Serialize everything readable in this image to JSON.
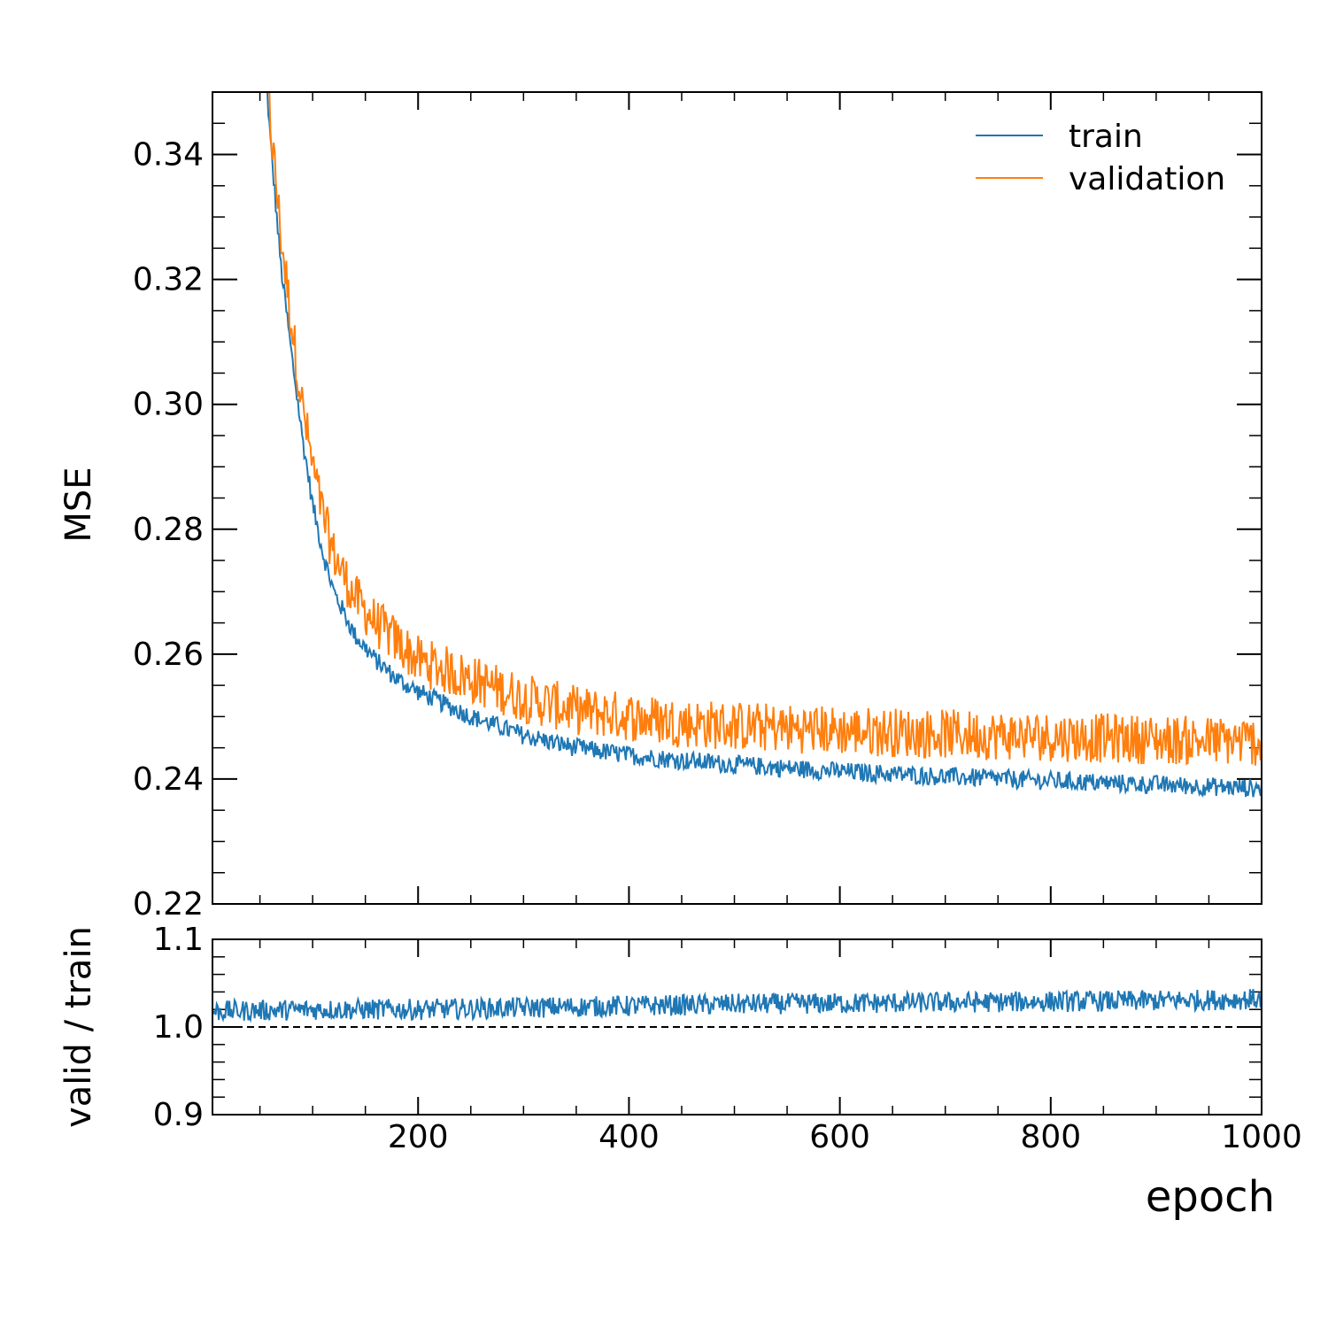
{
  "chart_data": [
    {
      "type": "line",
      "panel": "main",
      "title": "",
      "xlabel": "",
      "ylabel": "MSE",
      "xlim": [
        5,
        1000
      ],
      "ylim": [
        0.22,
        0.35
      ],
      "x_ticks": [
        200,
        400,
        600,
        800,
        1000
      ],
      "y_ticks": [
        0.22,
        0.24,
        0.26,
        0.28,
        0.3,
        0.32,
        0.34
      ],
      "y_tick_labels": [
        "0.22",
        "0.24",
        "0.26",
        "0.28",
        "0.30",
        "0.32",
        "0.34"
      ],
      "grid": false,
      "legend": {
        "position": "top-right",
        "entries": [
          "train",
          "validation"
        ]
      },
      "series": [
        {
          "name": "train",
          "color": "#1f77b4",
          "description": "approx. a + b*exp(-(x-c)/tau) with noise",
          "x": [
            55,
            60,
            70,
            80,
            90,
            100,
            110,
            120,
            140,
            160,
            180,
            200,
            250,
            300,
            350,
            400,
            450,
            500,
            600,
            700,
            800,
            900,
            1000
          ],
          "values": [
            0.355,
            0.342,
            0.322,
            0.308,
            0.295,
            0.284,
            0.276,
            0.27,
            0.263,
            0.259,
            0.256,
            0.254,
            0.25,
            0.247,
            0.245,
            0.2438,
            0.243,
            0.2423,
            0.2412,
            0.2404,
            0.2397,
            0.2391,
            0.2385
          ],
          "noise_amplitude": 0.0015
        },
        {
          "name": "validation",
          "color": "#ff7f0e",
          "description": "train curve times ratio, higher noise",
          "x": [
            55,
            60,
            70,
            80,
            90,
            100,
            110,
            120,
            140,
            160,
            180,
            200,
            250,
            300,
            350,
            400,
            450,
            500,
            600,
            700,
            800,
            900,
            1000
          ],
          "values": [
            0.358,
            0.345,
            0.327,
            0.313,
            0.3,
            0.29,
            0.282,
            0.276,
            0.269,
            0.265,
            0.262,
            0.259,
            0.256,
            0.253,
            0.251,
            0.25,
            0.249,
            0.2485,
            0.2478,
            0.2472,
            0.2468,
            0.2463,
            0.246
          ],
          "noise_amplitude": 0.004
        }
      ]
    },
    {
      "type": "line",
      "panel": "ratio",
      "title": "",
      "xlabel": "epoch",
      "ylabel": "valid / train",
      "xlim": [
        5,
        1000
      ],
      "ylim": [
        0.9,
        1.1
      ],
      "x_ticks": [
        200,
        400,
        600,
        800,
        1000
      ],
      "x_tick_labels": [
        "200",
        "400",
        "600",
        "800",
        "1000"
      ],
      "y_ticks": [
        0.9,
        1.0,
        1.1
      ],
      "y_tick_labels": [
        "0.9",
        "1.0",
        "1.1"
      ],
      "reference_line": {
        "y": 1.0,
        "style": "dashed",
        "color": "#000000"
      },
      "series": [
        {
          "name": "valid / train",
          "color": "#1f77b4",
          "x": [
            5,
            100,
            200,
            300,
            400,
            500,
            600,
            700,
            800,
            900,
            1000
          ],
          "values": [
            1.018,
            1.02,
            1.02,
            1.022,
            1.024,
            1.026,
            1.027,
            1.028,
            1.029,
            1.03,
            1.032
          ],
          "noise_amplitude": 0.012
        }
      ]
    }
  ]
}
